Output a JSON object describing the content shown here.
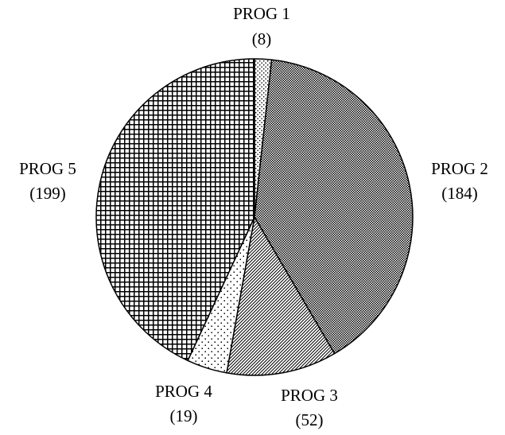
{
  "chart_data": {
    "type": "pie",
    "categories": [
      "PROG 1",
      "PROG 2",
      "PROG 3",
      "PROG 4",
      "PROG 5"
    ],
    "values": [
      8,
      184,
      52,
      19,
      199
    ],
    "value_labels": [
      "(8)",
      "(184)",
      "(52)",
      "(19)",
      "(199)"
    ],
    "start": "12 o'clock",
    "direction": "clockwise",
    "fill_patterns": [
      "fine-dots",
      "dense-checker",
      "diagonal-hatch",
      "sparse-dots",
      "grid"
    ],
    "colors": {
      "stroke": "#000000",
      "background": "#ffffff"
    }
  }
}
